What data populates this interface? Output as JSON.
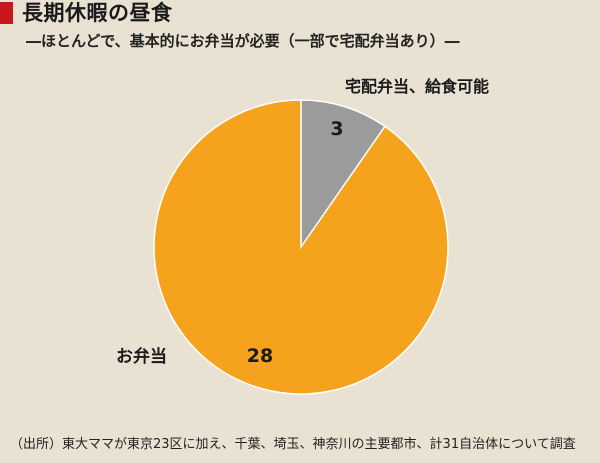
{
  "title": "長期休暇の昼食",
  "subtitle": "―ほとんどで、基本的にお弁当が必要（一部で宅配弁当あり）―",
  "source": "（出所）東大ママが東京23区に加え、千葉、埼玉、神奈川の主要都市、計31自治体について調査",
  "colors": {
    "accent": "#c8161d",
    "background": "#e9e2d2"
  },
  "chart_data": {
    "type": "pie",
    "slices": [
      {
        "label": "宅配弁当、給食可能",
        "value": 3,
        "color": "#9b9b9b"
      },
      {
        "label": "お弁当",
        "value": 28,
        "color": "#f5a21c"
      }
    ]
  }
}
